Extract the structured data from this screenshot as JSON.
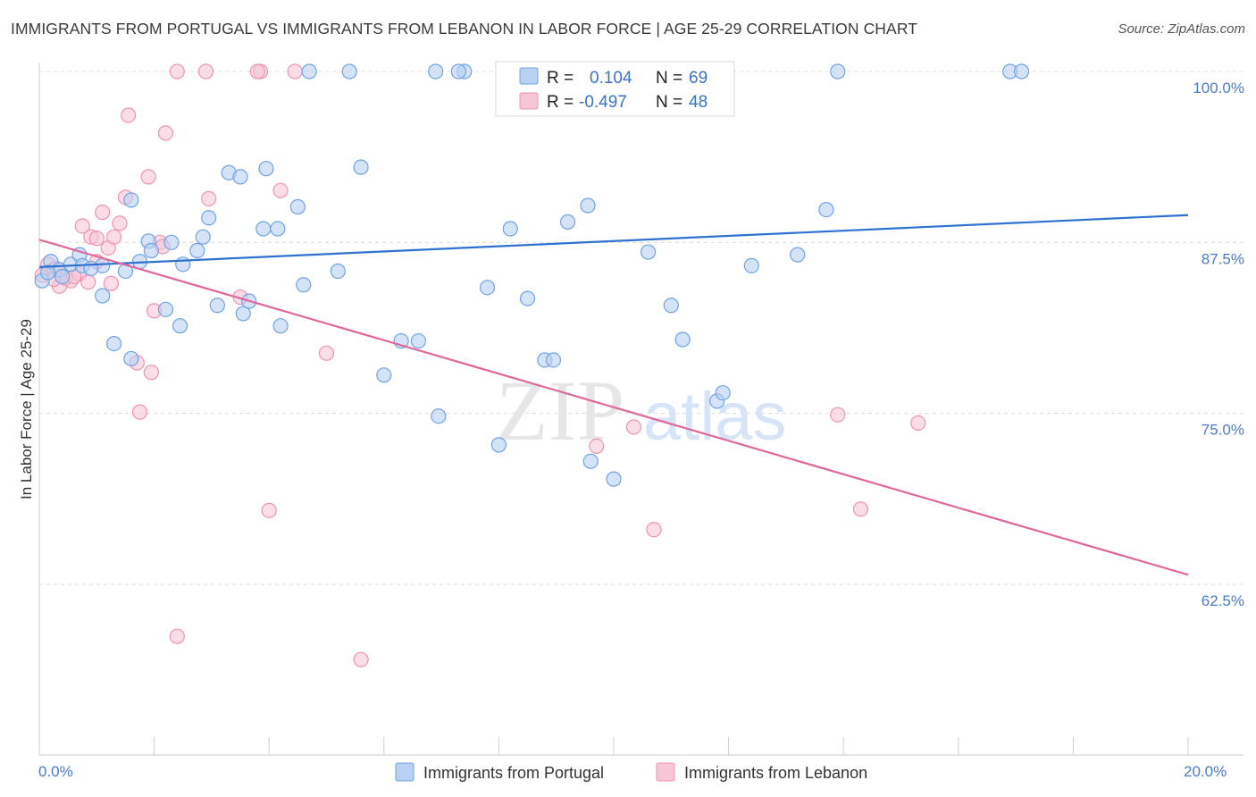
{
  "title": "IMMIGRANTS FROM PORTUGAL VS IMMIGRANTS FROM LEBANON IN LABOR FORCE | AGE 25-29 CORRELATION CHART",
  "source": "Source: ZipAtlas.com",
  "watermark": {
    "zip": "ZIP",
    "atlas": "atlas"
  },
  "colors": {
    "portugal": "#6fa3e3",
    "portugal_fill": "#b9d1f3",
    "portugal_line": "#2f72cf",
    "lebanon": "#ef93b3",
    "lebanon_fill": "#f6c6d6",
    "lebanon_line": "#e0679a"
  },
  "legend": {
    "r_label": "R =",
    "n_label": "N =",
    "portugal_r": "0.104",
    "portugal_n": "69",
    "lebanon_r": "-0.497",
    "lebanon_n": "48"
  },
  "chart_data": {
    "type": "scatter",
    "ylabel": "In Labor Force | Age 25-29",
    "xlim": [
      0,
      20
    ],
    "ylim": [
      50.5,
      101
    ],
    "y_ticks": [
      {
        "v": 100,
        "label": "100.0%"
      },
      {
        "v": 87.5,
        "label": "87.5%"
      },
      {
        "v": 75,
        "label": "75.0%"
      },
      {
        "v": 62.5,
        "label": "62.5%"
      }
    ],
    "x_ticks_labels": [
      {
        "v": 0,
        "label": "0.0%"
      },
      {
        "v": 20,
        "label": "20.0%"
      }
    ],
    "x_minor": [
      2,
      4,
      6,
      8,
      10,
      12,
      14,
      16,
      18,
      20
    ],
    "series": [
      {
        "name": "Immigrants from Portugal",
        "trend": [
          [
            0,
            85.7
          ],
          [
            20,
            89.5
          ]
        ],
        "points": [
          [
            0.05,
            84.7
          ],
          [
            0.2,
            86.1
          ],
          [
            0.35,
            85.5
          ],
          [
            0.55,
            85.9
          ],
          [
            0.7,
            86.6
          ],
          [
            0.75,
            85.8
          ],
          [
            1.1,
            85.8
          ],
          [
            1.5,
            85.4
          ],
          [
            1.75,
            86.1
          ],
          [
            1.3,
            80.1
          ],
          [
            1.6,
            79.0
          ],
          [
            1.1,
            83.6
          ],
          [
            1.6,
            90.6
          ],
          [
            1.9,
            87.6
          ],
          [
            1.95,
            86.9
          ],
          [
            2.3,
            87.5
          ],
          [
            2.2,
            82.6
          ],
          [
            2.5,
            85.9
          ],
          [
            2.45,
            81.4
          ],
          [
            2.75,
            86.9
          ],
          [
            2.85,
            87.9
          ],
          [
            2.95,
            89.3
          ],
          [
            3.1,
            82.9
          ],
          [
            3.3,
            92.6
          ],
          [
            3.5,
            92.3
          ],
          [
            3.55,
            82.3
          ],
          [
            3.65,
            83.2
          ],
          [
            3.9,
            88.5
          ],
          [
            3.95,
            92.9
          ],
          [
            4.15,
            88.5
          ],
          [
            4.2,
            81.4
          ],
          [
            4.5,
            90.1
          ],
          [
            4.6,
            84.4
          ],
          [
            4.7,
            100
          ],
          [
            5.2,
            85.4
          ],
          [
            5.6,
            93.0
          ],
          [
            6.0,
            77.8
          ],
          [
            6.3,
            80.3
          ],
          [
            6.6,
            80.3
          ],
          [
            6.95,
            74.8
          ],
          [
            7.4,
            100
          ],
          [
            7.3,
            100
          ],
          [
            6.9,
            100
          ],
          [
            5.4,
            100
          ],
          [
            7.8,
            84.2
          ],
          [
            8.0,
            72.7
          ],
          [
            8.2,
            88.5
          ],
          [
            8.5,
            83.4
          ],
          [
            8.8,
            78.9
          ],
          [
            8.95,
            78.9
          ],
          [
            9.2,
            89.0
          ],
          [
            9.6,
            100
          ],
          [
            9.55,
            90.2
          ],
          [
            9.6,
            71.5
          ],
          [
            10.0,
            70.2
          ],
          [
            10.6,
            86.8
          ],
          [
            11.0,
            82.9
          ],
          [
            11.2,
            80.4
          ],
          [
            11.8,
            75.9
          ],
          [
            11.9,
            76.5
          ],
          [
            12.4,
            85.8
          ],
          [
            13.2,
            86.6
          ],
          [
            13.7,
            89.9
          ],
          [
            13.9,
            100
          ],
          [
            16.9,
            100
          ],
          [
            17.1,
            100
          ],
          [
            0.4,
            85.0
          ],
          [
            0.15,
            85.3
          ],
          [
            0.9,
            85.6
          ]
        ]
      },
      {
        "name": "Immigrants from Lebanon",
        "trend": [
          [
            0,
            87.7
          ],
          [
            20,
            63.2
          ]
        ],
        "points": [
          [
            0.05,
            85.1
          ],
          [
            0.15,
            85.9
          ],
          [
            0.25,
            85.5
          ],
          [
            0.35,
            84.3
          ],
          [
            0.55,
            84.7
          ],
          [
            0.7,
            85.2
          ],
          [
            0.75,
            88.7
          ],
          [
            0.9,
            87.9
          ],
          [
            1.0,
            86.1
          ],
          [
            1.1,
            89.7
          ],
          [
            1.2,
            87.1
          ],
          [
            1.25,
            84.5
          ],
          [
            1.4,
            88.9
          ],
          [
            1.5,
            90.8
          ],
          [
            1.55,
            96.8
          ],
          [
            1.7,
            78.7
          ],
          [
            1.75,
            75.1
          ],
          [
            1.9,
            92.3
          ],
          [
            1.95,
            78.0
          ],
          [
            2.0,
            82.5
          ],
          [
            2.1,
            87.5
          ],
          [
            2.2,
            95.5
          ],
          [
            2.4,
            58.7
          ],
          [
            2.9,
            100
          ],
          [
            2.95,
            90.7
          ],
          [
            3.5,
            83.5
          ],
          [
            3.85,
            100
          ],
          [
            4.0,
            67.9
          ],
          [
            4.2,
            91.3
          ],
          [
            4.45,
            100
          ],
          [
            5.0,
            79.4
          ],
          [
            5.6,
            57.0
          ],
          [
            9.7,
            72.6
          ],
          [
            10.35,
            74.0
          ],
          [
            10.7,
            66.5
          ],
          [
            13.9,
            74.9
          ],
          [
            14.3,
            68.0
          ],
          [
            15.3,
            74.3
          ],
          [
            0.45,
            84.9
          ],
          [
            0.3,
            85.6
          ],
          [
            0.6,
            85.0
          ],
          [
            1.3,
            87.9
          ],
          [
            2.15,
            87.2
          ],
          [
            1.0,
            87.8
          ],
          [
            0.25,
            84.8
          ],
          [
            0.85,
            84.6
          ],
          [
            2.4,
            100
          ],
          [
            3.8,
            100
          ]
        ]
      }
    ]
  },
  "bottom_legend": {
    "portugal": "Immigrants from Portugal",
    "lebanon": "Immigrants from Lebanon"
  }
}
